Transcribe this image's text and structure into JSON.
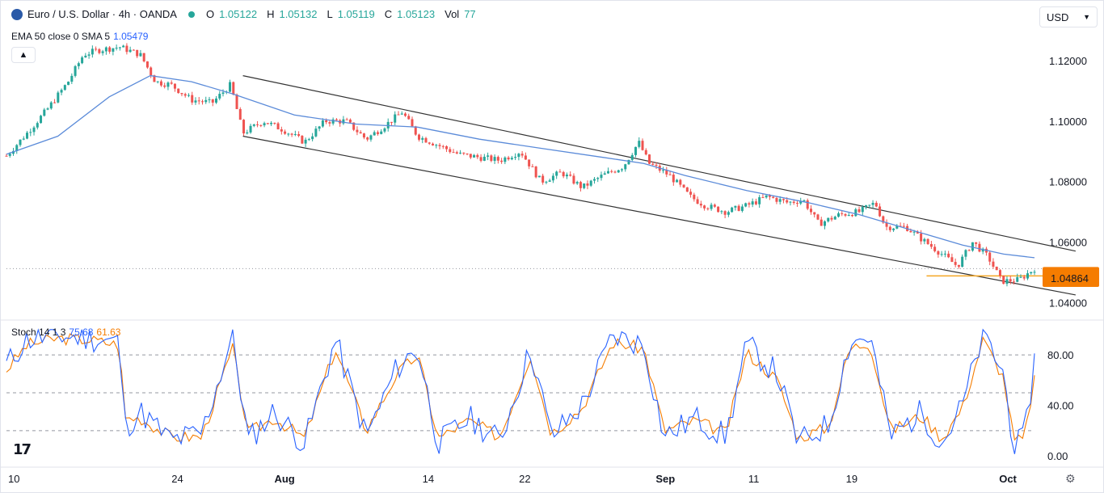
{
  "header": {
    "symbol": "Euro / U.S. Dollar · 4h · OANDA",
    "ohlc": [
      {
        "key": "O",
        "value": "1.05122"
      },
      {
        "key": "H",
        "value": "1.05132"
      },
      {
        "key": "L",
        "value": "1.05119"
      },
      {
        "key": "C",
        "value": "1.05123"
      },
      {
        "key": "Vol",
        "value": "77"
      }
    ]
  },
  "indicator": {
    "label": "EMA 50 close 0 SMA 5",
    "value": "1.05479"
  },
  "currency": {
    "label": "USD",
    "icon": "chevron-down-icon"
  },
  "stoch": {
    "label": "Stoch 14 1 3",
    "k": "75.68",
    "d": "61.63"
  },
  "logo_text": "17",
  "colors": {
    "up": "#26a69a",
    "down": "#ef5350",
    "ema": "#5b8bd9",
    "stoch_k": "#2962ff",
    "stoch_d": "#f57c00",
    "channel": "#333333",
    "support": "#f5a623",
    "price_label": "#f57c00"
  },
  "chart_data": [
    {
      "type": "candlestick",
      "y_ticks": [
        "1.12000",
        "1.10000",
        "1.08000",
        "1.06000",
        "1.04000"
      ],
      "ylim": [
        1.035,
        1.128
      ],
      "x_ticks": [
        {
          "label": "10",
          "pos": 0.0
        },
        {
          "label": "24",
          "pos": 0.159
        },
        {
          "label": "Aug",
          "pos": 0.259
        },
        {
          "label": "14",
          "pos": 0.403
        },
        {
          "label": "22",
          "pos": 0.497
        },
        {
          "label": "Sep",
          "pos": 0.63
        },
        {
          "label": "11",
          "pos": 0.72
        },
        {
          "label": "19",
          "pos": 0.815
        },
        {
          "label": "Oct",
          "pos": 0.964
        }
      ],
      "price_path": [
        [
          0.0,
          1.0885
        ],
        [
          0.02,
          1.096
        ],
        [
          0.04,
          1.104
        ],
        [
          0.06,
          1.113
        ],
        [
          0.075,
          1.122
        ],
        [
          0.09,
          1.1235
        ],
        [
          0.11,
          1.1245
        ],
        [
          0.13,
          1.122
        ],
        [
          0.145,
          1.113
        ],
        [
          0.16,
          1.112
        ],
        [
          0.18,
          1.107
        ],
        [
          0.2,
          1.106
        ],
        [
          0.218,
          1.112
        ],
        [
          0.23,
          1.096
        ],
        [
          0.25,
          1.1
        ],
        [
          0.27,
          1.097
        ],
        [
          0.29,
          1.093
        ],
        [
          0.31,
          1.1
        ],
        [
          0.33,
          1.1
        ],
        [
          0.35,
          1.094
        ],
        [
          0.37,
          1.099
        ],
        [
          0.385,
          1.103
        ],
        [
          0.4,
          1.095
        ],
        [
          0.42,
          1.092
        ],
        [
          0.44,
          1.089
        ],
        [
          0.46,
          1.088
        ],
        [
          0.48,
          1.087
        ],
        [
          0.5,
          1.09
        ],
        [
          0.52,
          1.08
        ],
        [
          0.54,
          1.083
        ],
        [
          0.56,
          1.078
        ],
        [
          0.58,
          1.082
        ],
        [
          0.6,
          1.085
        ],
        [
          0.615,
          1.093
        ],
        [
          0.625,
          1.086
        ],
        [
          0.645,
          1.082
        ],
        [
          0.665,
          1.075
        ],
        [
          0.68,
          1.072
        ],
        [
          0.7,
          1.07
        ],
        [
          0.72,
          1.072
        ],
        [
          0.74,
          1.075
        ],
        [
          0.76,
          1.073
        ],
        [
          0.775,
          1.074
        ],
        [
          0.79,
          1.066
        ],
        [
          0.81,
          1.069
        ],
        [
          0.83,
          1.07
        ],
        [
          0.845,
          1.073
        ],
        [
          0.855,
          1.065
        ],
        [
          0.875,
          1.065
        ],
        [
          0.89,
          1.061
        ],
        [
          0.91,
          1.056
        ],
        [
          0.925,
          1.052
        ],
        [
          0.94,
          1.06
        ],
        [
          0.955,
          1.055
        ],
        [
          0.968,
          1.047
        ],
        [
          0.985,
          1.0475
        ],
        [
          1.0,
          1.0512
        ]
      ],
      "ema_path": [
        [
          0.0,
          1.089
        ],
        [
          0.05,
          1.095
        ],
        [
          0.1,
          1.108
        ],
        [
          0.14,
          1.115
        ],
        [
          0.18,
          1.113
        ],
        [
          0.22,
          1.109
        ],
        [
          0.28,
          1.102
        ],
        [
          0.34,
          1.099
        ],
        [
          0.4,
          1.098
        ],
        [
          0.46,
          1.094
        ],
        [
          0.52,
          1.091
        ],
        [
          0.58,
          1.088
        ],
        [
          0.62,
          1.086
        ],
        [
          0.66,
          1.082
        ],
        [
          0.72,
          1.077
        ],
        [
          0.78,
          1.073
        ],
        [
          0.83,
          1.069
        ],
        [
          0.88,
          1.064
        ],
        [
          0.93,
          1.059
        ],
        [
          0.97,
          1.056
        ],
        [
          1.0,
          1.0548
        ]
      ],
      "channel_upper": [
        [
          0.23,
          1.115
        ],
        [
          1.04,
          1.057
        ]
      ],
      "channel_lower": [
        [
          0.23,
          1.095
        ],
        [
          1.04,
          1.0425
        ]
      ],
      "support_line": {
        "x_range": [
          0.895,
          1.04
        ],
        "value": 1.0488
      },
      "current_value": 1.0512,
      "price_labels": [
        "1.04881",
        "1.04864"
      ],
      "price_label_values": [
        1.0488,
        1.0481
      ]
    },
    {
      "type": "line",
      "name": "Stoch 14 1 3",
      "y_ticks": [
        "80.00",
        "40.00",
        "0.00"
      ],
      "ylim": [
        -5,
        105
      ],
      "levels": [
        80,
        50,
        20
      ],
      "k_points": [
        [
          0.0,
          72
        ],
        [
          0.02,
          92
        ],
        [
          0.05,
          95
        ],
        [
          0.08,
          93
        ],
        [
          0.11,
          90
        ],
        [
          0.115,
          22
        ],
        [
          0.13,
          35
        ],
        [
          0.16,
          12
        ],
        [
          0.19,
          18
        ],
        [
          0.22,
          95
        ],
        [
          0.235,
          12
        ],
        [
          0.26,
          35
        ],
        [
          0.29,
          10
        ],
        [
          0.32,
          92
        ],
        [
          0.35,
          15
        ],
        [
          0.38,
          70
        ],
        [
          0.4,
          85
        ],
        [
          0.42,
          10
        ],
        [
          0.45,
          30
        ],
        [
          0.48,
          12
        ],
        [
          0.51,
          85
        ],
        [
          0.53,
          15
        ],
        [
          0.56,
          40
        ],
        [
          0.59,
          95
        ],
        [
          0.62,
          88
        ],
        [
          0.64,
          15
        ],
        [
          0.67,
          30
        ],
        [
          0.7,
          15
        ],
        [
          0.72,
          88
        ],
        [
          0.75,
          65
        ],
        [
          0.77,
          10
        ],
        [
          0.8,
          25
        ],
        [
          0.82,
          90
        ],
        [
          0.84,
          95
        ],
        [
          0.86,
          15
        ],
        [
          0.89,
          35
        ],
        [
          0.91,
          10
        ],
        [
          0.93,
          40
        ],
        [
          0.95,
          96
        ],
        [
          0.97,
          65
        ],
        [
          0.98,
          8
        ],
        [
          0.99,
          12
        ],
        [
          1.0,
          76
        ]
      ],
      "d_points": [
        [
          0.0,
          68
        ],
        [
          0.02,
          88
        ],
        [
          0.05,
          93
        ],
        [
          0.08,
          92
        ],
        [
          0.11,
          88
        ],
        [
          0.115,
          30
        ],
        [
          0.13,
          30
        ],
        [
          0.16,
          15
        ],
        [
          0.19,
          15
        ],
        [
          0.22,
          85
        ],
        [
          0.235,
          18
        ],
        [
          0.26,
          30
        ],
        [
          0.29,
          14
        ],
        [
          0.32,
          85
        ],
        [
          0.35,
          20
        ],
        [
          0.38,
          65
        ],
        [
          0.4,
          80
        ],
        [
          0.42,
          14
        ],
        [
          0.45,
          28
        ],
        [
          0.48,
          15
        ],
        [
          0.51,
          80
        ],
        [
          0.53,
          18
        ],
        [
          0.56,
          38
        ],
        [
          0.59,
          90
        ],
        [
          0.62,
          85
        ],
        [
          0.64,
          20
        ],
        [
          0.67,
          28
        ],
        [
          0.7,
          18
        ],
        [
          0.72,
          82
        ],
        [
          0.75,
          60
        ],
        [
          0.77,
          14
        ],
        [
          0.8,
          23
        ],
        [
          0.82,
          85
        ],
        [
          0.84,
          90
        ],
        [
          0.86,
          20
        ],
        [
          0.89,
          32
        ],
        [
          0.91,
          14
        ],
        [
          0.93,
          38
        ],
        [
          0.95,
          92
        ],
        [
          0.97,
          62
        ],
        [
          0.98,
          12
        ],
        [
          0.99,
          13
        ],
        [
          1.0,
          62
        ]
      ]
    }
  ]
}
